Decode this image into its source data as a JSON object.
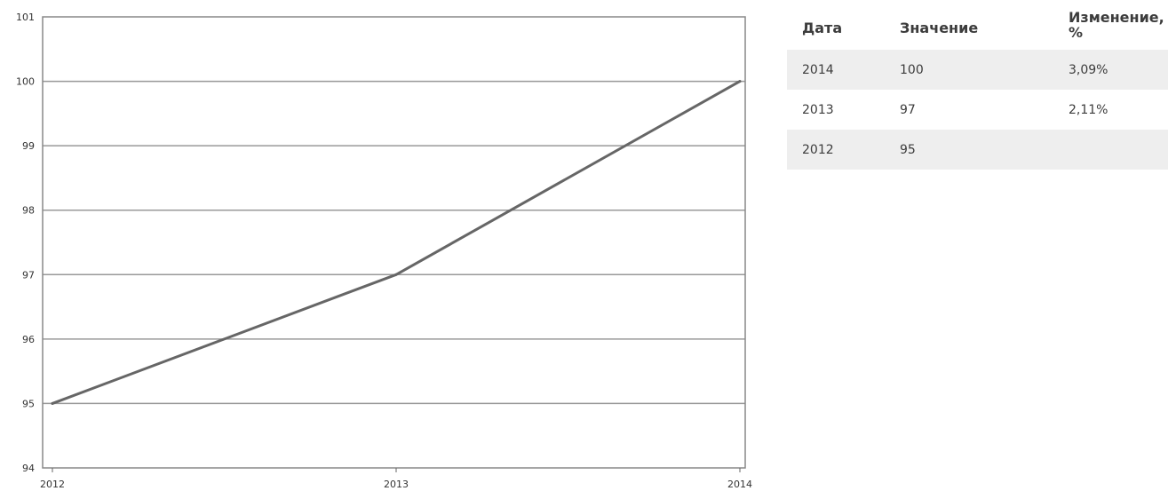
{
  "chart_data": {
    "type": "line",
    "x": [
      "2012",
      "2013",
      "2014"
    ],
    "values": [
      95,
      97,
      100
    ],
    "ylim": [
      94,
      101
    ],
    "yticks": [
      94,
      95,
      96,
      97,
      98,
      99,
      100,
      101
    ],
    "grid": true,
    "line_color": "#666666",
    "grid_color": "#999999"
  },
  "table": {
    "headers": {
      "date": "Дата",
      "value": "Значение",
      "change": "Изменение, %"
    },
    "rows": [
      {
        "date": "2014",
        "value": "100",
        "change": "3,09%"
      },
      {
        "date": "2013",
        "value": "97",
        "change": "2,11%"
      },
      {
        "date": "2012",
        "value": "95",
        "change": ""
      }
    ],
    "shade_color": "#eeeeee"
  }
}
